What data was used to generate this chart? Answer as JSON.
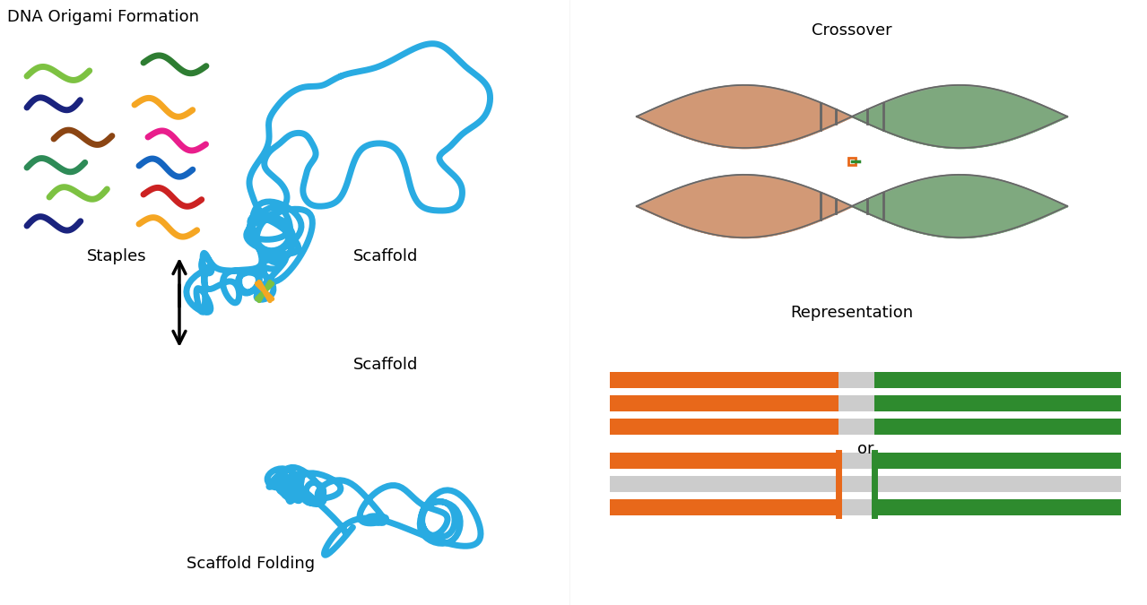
{
  "title": "DNA Origami Formation",
  "bg_color": "#ffffff",
  "staple_colors": [
    "#7DC242",
    "#1A3A8C",
    "#F5A623",
    "#7B4F2E",
    "#E91E8C",
    "#2E8B57",
    "#4A90D9",
    "#7DC242",
    "#CC2222",
    "#F5A623",
    "#1A3A8C",
    "#3CB371"
  ],
  "scaffold_color": "#29ABE2",
  "arrow_color": "#000000",
  "crossover_orange": "#E8681A",
  "crossover_green": "#2E8B2E",
  "crossover_gray": "#C0C0C0",
  "rep_orange": "#E8681A",
  "rep_green": "#2E8B2E",
  "rep_gray": "#C0C0C0",
  "labels": {
    "title": "DNA Origami Formation",
    "staples": "Staples",
    "scaffold": "Scaffold",
    "folding": "Scaffold Folding",
    "crossover": "Crossover",
    "representation": "Representation"
  }
}
